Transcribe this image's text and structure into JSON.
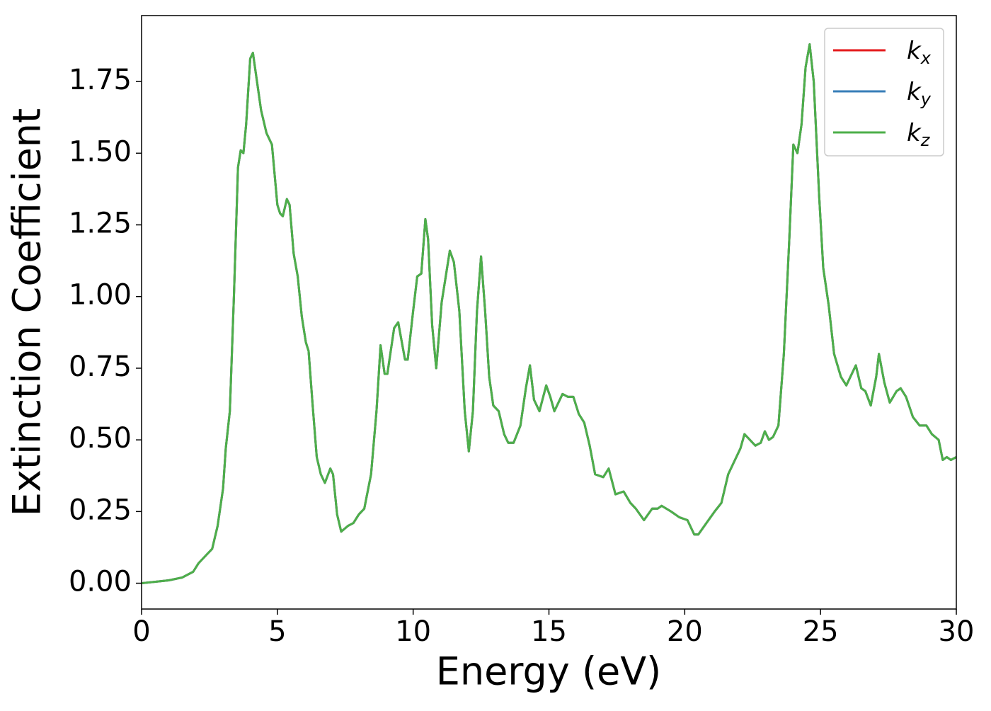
{
  "chart_data": {
    "type": "line",
    "x_label": "Energy (eV)",
    "y_label": "Extinction Coefficient",
    "x": [
      0,
      1,
      1.5,
      1.9,
      2.1,
      2.3,
      2.6,
      2.8,
      3.0,
      3.1,
      3.25,
      3.4,
      3.55,
      3.65,
      3.75,
      3.85,
      4.0,
      4.1,
      4.25,
      4.4,
      4.6,
      4.8,
      5.0,
      5.1,
      5.2,
      5.35,
      5.45,
      5.6,
      5.75,
      5.9,
      6.05,
      6.15,
      6.3,
      6.45,
      6.6,
      6.75,
      6.95,
      7.05,
      7.2,
      7.35,
      7.6,
      7.8,
      8.0,
      8.2,
      8.45,
      8.65,
      8.8,
      8.95,
      9.05,
      9.3,
      9.45,
      9.7,
      9.8,
      10.0,
      10.15,
      10.3,
      10.45,
      10.55,
      10.7,
      10.85,
      11.05,
      11.2,
      11.35,
      11.5,
      11.7,
      11.9,
      12.05,
      12.2,
      12.35,
      12.5,
      12.65,
      12.8,
      12.95,
      13.15,
      13.35,
      13.5,
      13.7,
      13.95,
      14.15,
      14.3,
      14.45,
      14.65,
      14.9,
      15.05,
      15.2,
      15.5,
      15.7,
      15.9,
      16.1,
      16.3,
      16.5,
      16.7,
      17.0,
      17.2,
      17.45,
      17.75,
      18.0,
      18.2,
      18.5,
      18.8,
      19.0,
      19.15,
      19.5,
      19.8,
      20.1,
      20.35,
      20.5,
      20.8,
      21.1,
      21.35,
      21.6,
      21.85,
      22.05,
      22.2,
      22.4,
      22.6,
      22.8,
      22.95,
      23.1,
      23.25,
      23.45,
      23.65,
      23.85,
      24.0,
      24.15,
      24.3,
      24.45,
      24.6,
      24.75,
      24.95,
      25.1,
      25.3,
      25.5,
      25.75,
      25.95,
      26.1,
      26.3,
      26.5,
      26.65,
      26.85,
      27.05,
      27.15,
      27.35,
      27.55,
      27.8,
      27.95,
      28.15,
      28.4,
      28.65,
      28.9,
      29.1,
      29.35,
      29.5,
      29.65,
      29.8,
      30.0
    ],
    "series": [
      {
        "name": "kx",
        "color": "#e41a1c",
        "values": [
          0,
          0.01,
          0.02,
          0.04,
          0.07,
          0.09,
          0.12,
          0.2,
          0.33,
          0.47,
          0.6,
          1.0,
          1.45,
          1.51,
          1.5,
          1.6,
          1.83,
          1.85,
          1.75,
          1.65,
          1.57,
          1.53,
          1.32,
          1.29,
          1.28,
          1.34,
          1.32,
          1.15,
          1.07,
          0.93,
          0.84,
          0.81,
          0.62,
          0.44,
          0.38,
          0.35,
          0.4,
          0.38,
          0.24,
          0.18,
          0.2,
          0.21,
          0.24,
          0.26,
          0.38,
          0.6,
          0.83,
          0.73,
          0.73,
          0.89,
          0.91,
          0.78,
          0.78,
          0.95,
          1.07,
          1.08,
          1.27,
          1.2,
          0.9,
          0.75,
          0.98,
          1.07,
          1.16,
          1.12,
          0.95,
          0.6,
          0.46,
          0.6,
          0.95,
          1.14,
          0.95,
          0.72,
          0.62,
          0.6,
          0.52,
          0.49,
          0.49,
          0.55,
          0.68,
          0.76,
          0.64,
          0.6,
          0.69,
          0.65,
          0.6,
          0.66,
          0.65,
          0.65,
          0.59,
          0.56,
          0.48,
          0.38,
          0.37,
          0.4,
          0.31,
          0.32,
          0.28,
          0.26,
          0.22,
          0.26,
          0.26,
          0.27,
          0.25,
          0.23,
          0.22,
          0.17,
          0.17,
          0.21,
          0.25,
          0.28,
          0.38,
          0.43,
          0.47,
          0.52,
          0.5,
          0.48,
          0.49,
          0.53,
          0.5,
          0.51,
          0.55,
          0.8,
          1.2,
          1.53,
          1.5,
          1.6,
          1.8,
          1.88,
          1.75,
          1.35,
          1.1,
          0.97,
          0.8,
          0.72,
          0.69,
          0.72,
          0.76,
          0.68,
          0.67,
          0.62,
          0.72,
          0.8,
          0.7,
          0.63,
          0.67,
          0.68,
          0.65,
          0.58,
          0.55,
          0.55,
          0.52,
          0.5,
          0.43,
          0.44,
          0.43,
          0.44
        ]
      },
      {
        "name": "ky",
        "color": "#377eb8",
        "values": [
          0,
          0.01,
          0.02,
          0.04,
          0.07,
          0.09,
          0.12,
          0.2,
          0.33,
          0.47,
          0.6,
          1.0,
          1.45,
          1.51,
          1.5,
          1.6,
          1.83,
          1.85,
          1.75,
          1.65,
          1.57,
          1.53,
          1.32,
          1.29,
          1.28,
          1.34,
          1.32,
          1.15,
          1.07,
          0.93,
          0.84,
          0.81,
          0.62,
          0.44,
          0.38,
          0.35,
          0.4,
          0.38,
          0.24,
          0.18,
          0.2,
          0.21,
          0.24,
          0.26,
          0.38,
          0.6,
          0.83,
          0.73,
          0.73,
          0.89,
          0.91,
          0.78,
          0.78,
          0.95,
          1.07,
          1.08,
          1.27,
          1.2,
          0.9,
          0.75,
          0.98,
          1.07,
          1.16,
          1.12,
          0.95,
          0.6,
          0.46,
          0.6,
          0.95,
          1.14,
          0.95,
          0.72,
          0.62,
          0.6,
          0.52,
          0.49,
          0.49,
          0.55,
          0.68,
          0.76,
          0.64,
          0.6,
          0.69,
          0.65,
          0.6,
          0.66,
          0.65,
          0.65,
          0.59,
          0.56,
          0.48,
          0.38,
          0.37,
          0.4,
          0.31,
          0.32,
          0.28,
          0.26,
          0.22,
          0.26,
          0.26,
          0.27,
          0.25,
          0.23,
          0.22,
          0.17,
          0.17,
          0.21,
          0.25,
          0.28,
          0.38,
          0.43,
          0.47,
          0.52,
          0.5,
          0.48,
          0.49,
          0.53,
          0.5,
          0.51,
          0.55,
          0.8,
          1.2,
          1.53,
          1.5,
          1.6,
          1.8,
          1.88,
          1.75,
          1.35,
          1.1,
          0.97,
          0.8,
          0.72,
          0.69,
          0.72,
          0.76,
          0.68,
          0.67,
          0.62,
          0.72,
          0.8,
          0.7,
          0.63,
          0.67,
          0.68,
          0.65,
          0.58,
          0.55,
          0.55,
          0.52,
          0.5,
          0.43,
          0.44,
          0.43,
          0.44
        ]
      },
      {
        "name": "kz",
        "color": "#4daf4a",
        "values": [
          0,
          0.01,
          0.02,
          0.04,
          0.07,
          0.09,
          0.12,
          0.2,
          0.33,
          0.47,
          0.6,
          1.0,
          1.45,
          1.51,
          1.5,
          1.6,
          1.83,
          1.85,
          1.75,
          1.65,
          1.57,
          1.53,
          1.32,
          1.29,
          1.28,
          1.34,
          1.32,
          1.15,
          1.07,
          0.93,
          0.84,
          0.81,
          0.62,
          0.44,
          0.38,
          0.35,
          0.4,
          0.38,
          0.24,
          0.18,
          0.2,
          0.21,
          0.24,
          0.26,
          0.38,
          0.6,
          0.83,
          0.73,
          0.73,
          0.89,
          0.91,
          0.78,
          0.78,
          0.95,
          1.07,
          1.08,
          1.27,
          1.2,
          0.9,
          0.75,
          0.98,
          1.07,
          1.16,
          1.12,
          0.95,
          0.6,
          0.46,
          0.6,
          0.95,
          1.14,
          0.95,
          0.72,
          0.62,
          0.6,
          0.52,
          0.49,
          0.49,
          0.55,
          0.68,
          0.76,
          0.64,
          0.6,
          0.69,
          0.65,
          0.6,
          0.66,
          0.65,
          0.65,
          0.59,
          0.56,
          0.48,
          0.38,
          0.37,
          0.4,
          0.31,
          0.32,
          0.28,
          0.26,
          0.22,
          0.26,
          0.26,
          0.27,
          0.25,
          0.23,
          0.22,
          0.17,
          0.17,
          0.21,
          0.25,
          0.28,
          0.38,
          0.43,
          0.47,
          0.52,
          0.5,
          0.48,
          0.49,
          0.53,
          0.5,
          0.51,
          0.55,
          0.8,
          1.2,
          1.53,
          1.5,
          1.6,
          1.8,
          1.88,
          1.75,
          1.35,
          1.1,
          0.97,
          0.8,
          0.72,
          0.69,
          0.72,
          0.76,
          0.68,
          0.67,
          0.62,
          0.72,
          0.8,
          0.7,
          0.63,
          0.67,
          0.68,
          0.65,
          0.58,
          0.55,
          0.55,
          0.52,
          0.5,
          0.43,
          0.44,
          0.43,
          0.44
        ]
      }
    ],
    "xlim": [
      0,
      30
    ],
    "xticks": [
      0,
      5,
      10,
      15,
      20,
      25,
      30
    ],
    "ylim": [
      -0.09,
      1.98
    ],
    "yticks": [
      {
        "value": 0,
        "label": "0.00"
      },
      0.25,
      {
        "value": 0.5,
        "label": "0.50"
      },
      0.75,
      {
        "value": 1,
        "label": "1.00"
      },
      1.25,
      {
        "value": 1.5,
        "label": "1.50"
      },
      1.75
    ],
    "legend": "upper right",
    "grid": false
  }
}
